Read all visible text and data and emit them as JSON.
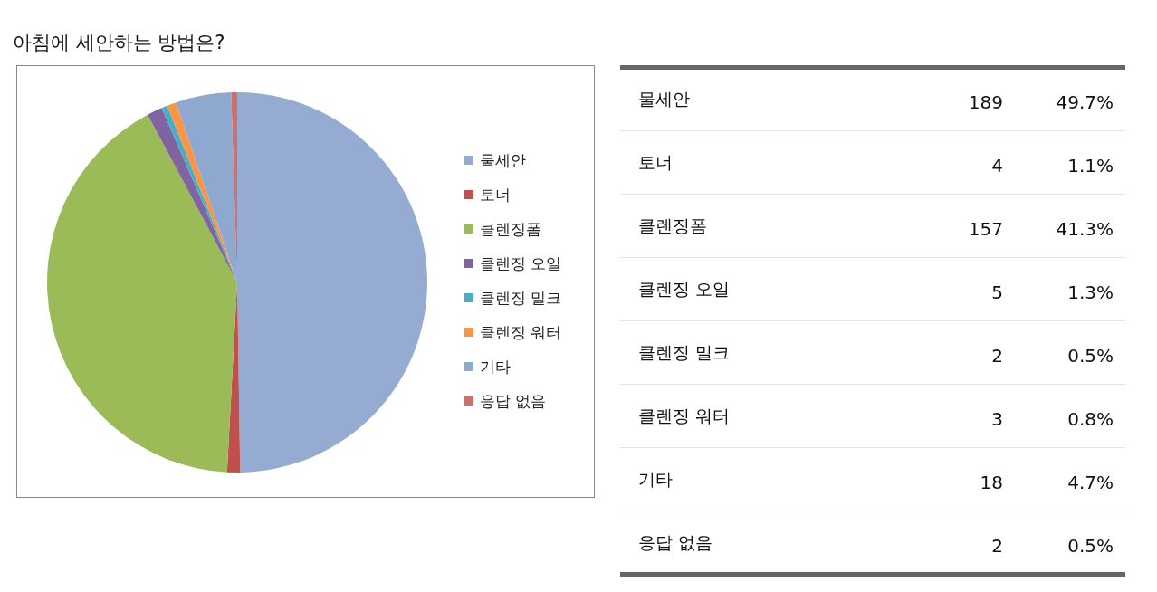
{
  "chart_data": [
    {
      "type": "pie",
      "title": "아침에 세안하는 방법은?",
      "categories": [
        "물세안",
        "토너",
        "클렌징폼",
        "클렌징 오일",
        "클렌징 밀크",
        "클렌징 워터",
        "기타",
        "응답 없음"
      ],
      "values": [
        49.7,
        1.1,
        41.3,
        1.3,
        0.5,
        0.8,
        4.7,
        0.5
      ],
      "colors": [
        "#95abd2",
        "#c0504d",
        "#9bbb59",
        "#8064a2",
        "#4bacc6",
        "#f79646",
        "#8fa8cf",
        "#d0706e"
      ],
      "legend": "right"
    },
    {
      "type": "other",
      "categories": [
        "물세안",
        "토너",
        "클렌징폼",
        "클렌징 오일",
        "클렌징 밀크",
        "클렌징 워터",
        "기타",
        "응답 없음"
      ],
      "series": [
        {
          "values": [
            189,
            4,
            157,
            5,
            2,
            3,
            18,
            2
          ]
        },
        {
          "values": [
            49.7,
            1.1,
            41.3,
            1.3,
            0.5,
            0.8,
            4.7,
            0.5
          ],
          "value_labels": [
            "49.7%",
            "1.1%",
            "41.3%",
            "1.3%",
            "0.5%",
            "0.8%",
            "4.7%",
            "0.5%"
          ]
        }
      ],
      "data_labels": true
    }
  ]
}
